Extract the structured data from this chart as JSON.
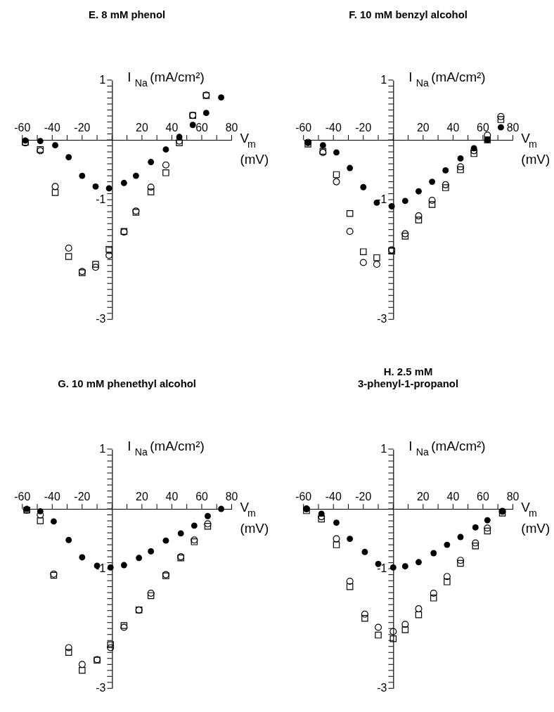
{
  "chart_data": [
    {
      "type": "scatter",
      "title": "E. 8 mM phenol",
      "xlabel": "V$_{m}$ (mV)",
      "ylabel": "I$_{Na}$ (mA/cm²)",
      "xlim": [
        -60,
        80
      ],
      "ylim": [
        -3,
        1
      ],
      "grid": false,
      "xticks": [
        -60,
        {
          "value": -50,
          "label": null
        },
        -40,
        {
          "value": -30,
          "label": null
        },
        -20,
        {
          "value": -10,
          "label": null
        },
        {
          "value": 0,
          "label": null
        },
        {
          "value": 10,
          "label": null
        },
        20,
        {
          "value": 30,
          "label": null
        },
        40,
        {
          "value": 50,
          "label": null
        },
        60,
        {
          "value": 70,
          "label": null
        },
        80
      ],
      "yticks": [
        1,
        {
          "value": 0.9,
          "label": null
        },
        {
          "value": 0.8,
          "label": null
        },
        {
          "value": 0.7,
          "label": null
        },
        {
          "value": 0.6,
          "label": null
        },
        {
          "value": 0.5,
          "label": null
        },
        {
          "value": 0.4,
          "label": null
        },
        {
          "value": 0.3,
          "label": null
        },
        {
          "value": 0.2,
          "label": null
        },
        {
          "value": 0.1,
          "label": null
        },
        {
          "value": 0,
          "label": null
        },
        {
          "value": -0.1,
          "label": null
        },
        {
          "value": -0.2,
          "label": null
        },
        {
          "value": -0.3,
          "label": null
        },
        {
          "value": -0.4,
          "label": null
        },
        {
          "value": -0.5,
          "label": null
        },
        {
          "value": -0.6,
          "label": null
        },
        {
          "value": -0.7,
          "label": null
        },
        {
          "value": -0.8,
          "label": null
        },
        {
          "value": -0.9,
          "label": null
        },
        -1,
        {
          "value": -1.1,
          "label": null
        },
        {
          "value": -1.2,
          "label": null
        },
        {
          "value": -1.3,
          "label": null
        },
        {
          "value": -1.4,
          "label": null
        },
        {
          "value": -1.5,
          "label": null
        },
        {
          "value": -1.6,
          "label": null
        },
        {
          "value": -1.7,
          "label": null
        },
        {
          "value": -1.8,
          "label": null
        },
        {
          "value": -1.9,
          "label": null
        },
        {
          "value": -2,
          "label": null
        },
        {
          "value": -2.1,
          "label": null
        },
        {
          "value": -2.2,
          "label": null
        },
        {
          "value": -2.3,
          "label": null
        },
        {
          "value": -2.4,
          "label": null
        },
        {
          "value": -2.5,
          "label": null
        },
        {
          "value": -2.6,
          "label": null
        },
        {
          "value": -2.7,
          "label": null
        },
        {
          "value": -2.8,
          "label": null
        },
        {
          "value": -2.9,
          "label": null
        },
        -3
      ],
      "series": [
        {
          "color": "#000000",
          "marker": "circle",
          "x": [
            -58,
            -48,
            -38,
            -29,
            -20,
            -11,
            -2,
            8,
            16,
            26,
            36,
            45,
            54,
            63,
            73
          ],
          "values": [
            -0.01,
            -0.02,
            -0.09,
            -0.29,
            -0.6,
            -0.78,
            -0.81,
            -0.72,
            -0.6,
            -0.37,
            -0.16,
            0.05,
            0.25,
            0.45,
            0.71
          ]
        },
        {
          "color": "#000000",
          "marker": "circle",
          "x": [
            -58,
            -48,
            -38,
            -29,
            -20,
            -11,
            -2,
            8,
            16,
            26,
            36,
            45,
            54,
            63
          ],
          "values": [
            -0.05,
            -0.18,
            -0.78,
            -1.81,
            -2.2,
            -2.13,
            -1.93,
            -1.54,
            -1.19,
            -0.79,
            -0.42,
            -0.02,
            0.41,
            0.75
          ]
        },
        {
          "color": "#000000",
          "marker": "square",
          "x": [
            -58,
            -48,
            -38,
            -29,
            -20,
            -11,
            -2,
            8,
            16,
            26,
            36,
            45,
            54,
            63
          ],
          "values": [
            -0.04,
            -0.16,
            -0.88,
            -1.95,
            -2.22,
            -2.08,
            -1.83,
            -1.53,
            -1.21,
            -0.87,
            -0.55,
            -0.05,
            0.41,
            0.74
          ]
        }
      ]
    },
    {
      "type": "scatter",
      "title": "F. 10 mM benzyl alcohol",
      "xlabel": "V$_{m}$ (mV)",
      "ylabel": "I$_{Na}$ (mA/cm²)",
      "xlim": [
        -60,
        80
      ],
      "ylim": [
        -3,
        1
      ],
      "grid": false,
      "xticks": [
        -60,
        {
          "value": -50,
          "label": null
        },
        -40,
        {
          "value": -30,
          "label": null
        },
        -20,
        {
          "value": -10,
          "label": null
        },
        {
          "value": 0,
          "label": null
        },
        {
          "value": 10,
          "label": null
        },
        20,
        {
          "value": 30,
          "label": null
        },
        40,
        {
          "value": 50,
          "label": null
        },
        60,
        {
          "value": 70,
          "label": null
        },
        80
      ],
      "yticks": [
        1,
        {
          "value": 0.9,
          "label": null
        },
        {
          "value": 0.8,
          "label": null
        },
        {
          "value": 0.7,
          "label": null
        },
        {
          "value": 0.6,
          "label": null
        },
        {
          "value": 0.5,
          "label": null
        },
        {
          "value": 0.4,
          "label": null
        },
        {
          "value": 0.3,
          "label": null
        },
        {
          "value": 0.2,
          "label": null
        },
        {
          "value": 0.1,
          "label": null
        },
        {
          "value": 0,
          "label": null
        },
        {
          "value": -0.1,
          "label": null
        },
        {
          "value": -0.2,
          "label": null
        },
        {
          "value": -0.3,
          "label": null
        },
        {
          "value": -0.4,
          "label": null
        },
        {
          "value": -0.5,
          "label": null
        },
        {
          "value": -0.6,
          "label": null
        },
        {
          "value": -0.7,
          "label": null
        },
        {
          "value": -0.8,
          "label": null
        },
        {
          "value": -0.9,
          "label": null
        },
        -1,
        {
          "value": -1.1,
          "label": null
        },
        {
          "value": -1.2,
          "label": null
        },
        {
          "value": -1.3,
          "label": null
        },
        {
          "value": -1.4,
          "label": null
        },
        {
          "value": -1.5,
          "label": null
        },
        {
          "value": -1.6,
          "label": null
        },
        {
          "value": -1.7,
          "label": null
        },
        {
          "value": -1.8,
          "label": null
        },
        {
          "value": -1.9,
          "label": null
        },
        {
          "value": -2,
          "label": null
        },
        {
          "value": -2.1,
          "label": null
        },
        {
          "value": -2.2,
          "label": null
        },
        {
          "value": -2.3,
          "label": null
        },
        {
          "value": -2.4,
          "label": null
        },
        {
          "value": -2.5,
          "label": null
        },
        {
          "value": -2.6,
          "label": null
        },
        {
          "value": -2.7,
          "label": null
        },
        {
          "value": -2.8,
          "label": null
        },
        {
          "value": -2.9,
          "label": null
        },
        -3
      ],
      "series": [
        {
          "color": "#000000",
          "marker": "circle",
          "x": [
            -57,
            -47,
            -38,
            -29,
            -20,
            -11,
            -1,
            8,
            17,
            26,
            35,
            45,
            54,
            63,
            72
          ],
          "values": [
            -0.05,
            -0.09,
            -0.21,
            -0.47,
            -0.79,
            -1.05,
            -1.11,
            -1.02,
            -0.86,
            -0.7,
            -0.51,
            -0.31,
            -0.14,
            0.0,
            0.21
          ]
        },
        {
          "color": "#000000",
          "marker": "circle",
          "x": [
            -57,
            -47,
            -38,
            -29,
            -20,
            -11,
            -1,
            8,
            17,
            26,
            35,
            45,
            54,
            63,
            72
          ],
          "values": [
            -0.04,
            -0.21,
            -0.7,
            -1.53,
            -2.05,
            -2.08,
            -1.84,
            -1.57,
            -1.27,
            -1.01,
            -0.75,
            -0.45,
            -0.18,
            0.08,
            0.39
          ]
        },
        {
          "color": "#000000",
          "marker": "square",
          "x": [
            -57,
            -47,
            -38,
            -29,
            -20,
            -11,
            -1,
            8,
            17,
            26,
            35,
            45,
            54,
            63,
            72
          ],
          "values": [
            -0.07,
            -0.19,
            -0.58,
            -1.23,
            -1.87,
            -1.97,
            -1.86,
            -1.61,
            -1.34,
            -1.08,
            -0.8,
            -0.5,
            -0.23,
            0.0,
            0.34
          ]
        }
      ]
    },
    {
      "type": "scatter",
      "title": "G. 10 mM phenethyl alcohol",
      "xlabel": "V$_{m}$ (mV)",
      "ylabel": "I$_{Na}$ (mA/cm²)",
      "xlim": [
        -60,
        80
      ],
      "ylim": [
        -3,
        1
      ],
      "grid": false,
      "xticks": [
        -60,
        {
          "value": -50,
          "label": null
        },
        -40,
        {
          "value": -30,
          "label": null
        },
        -20,
        {
          "value": -10,
          "label": null
        },
        {
          "value": 0,
          "label": null
        },
        {
          "value": 10,
          "label": null
        },
        20,
        {
          "value": 30,
          "label": null
        },
        40,
        {
          "value": 50,
          "label": null
        },
        60,
        {
          "value": 70,
          "label": null
        },
        80
      ],
      "yticks": [
        1,
        {
          "value": 0.9,
          "label": null
        },
        {
          "value": 0.8,
          "label": null
        },
        {
          "value": 0.7,
          "label": null
        },
        {
          "value": 0.6,
          "label": null
        },
        {
          "value": 0.5,
          "label": null
        },
        {
          "value": 0.4,
          "label": null
        },
        {
          "value": 0.3,
          "label": null
        },
        {
          "value": 0.2,
          "label": null
        },
        {
          "value": 0.1,
          "label": null
        },
        {
          "value": 0,
          "label": null
        },
        {
          "value": -0.1,
          "label": null
        },
        {
          "value": -0.2,
          "label": null
        },
        {
          "value": -0.3,
          "label": null
        },
        {
          "value": -0.4,
          "label": null
        },
        {
          "value": -0.5,
          "label": null
        },
        {
          "value": -0.6,
          "label": null
        },
        {
          "value": -0.7,
          "label": null
        },
        {
          "value": -0.8,
          "label": null
        },
        {
          "value": -0.9,
          "label": null
        },
        -1,
        {
          "value": -1.1,
          "label": null
        },
        {
          "value": -1.2,
          "label": null
        },
        {
          "value": -1.3,
          "label": null
        },
        {
          "value": -1.4,
          "label": null
        },
        {
          "value": -1.5,
          "label": null
        },
        {
          "value": -1.6,
          "label": null
        },
        {
          "value": -1.7,
          "label": null
        },
        {
          "value": -1.8,
          "label": null
        },
        {
          "value": -1.9,
          "label": null
        },
        {
          "value": -2,
          "label": null
        },
        {
          "value": -2.1,
          "label": null
        },
        {
          "value": -2.2,
          "label": null
        },
        {
          "value": -2.3,
          "label": null
        },
        {
          "value": -2.4,
          "label": null
        },
        {
          "value": -2.5,
          "label": null
        },
        {
          "value": -2.6,
          "label": null
        },
        {
          "value": -2.7,
          "label": null
        },
        {
          "value": -2.8,
          "label": null
        },
        {
          "value": -2.9,
          "label": null
        },
        -3
      ],
      "series": [
        {
          "color": "#000000",
          "marker": "circle",
          "x": [
            -57,
            -48,
            -39,
            -29,
            -20,
            -10,
            -1,
            8,
            18,
            26,
            36,
            46,
            55,
            64,
            73
          ],
          "values": [
            0.0,
            -0.04,
            -0.21,
            -0.52,
            -0.81,
            -0.95,
            -0.98,
            -0.94,
            -0.82,
            -0.71,
            -0.53,
            -0.41,
            -0.28,
            -0.12,
            0.0
          ]
        },
        {
          "color": "#000000",
          "marker": "circle",
          "x": [
            -57,
            -48,
            -39,
            -29,
            -20,
            -10,
            -1,
            8,
            18,
            26,
            36,
            46,
            55,
            64
          ],
          "values": [
            -0.02,
            -0.1,
            -1.09,
            -2.32,
            -2.6,
            -2.52,
            -2.32,
            -1.98,
            -1.69,
            -1.41,
            -1.1,
            -0.8,
            -0.52,
            -0.25
          ]
        },
        {
          "color": "#000000",
          "marker": "square",
          "x": [
            -57,
            -48,
            -39,
            -29,
            -20,
            -10,
            -1,
            8,
            18,
            26,
            36,
            46,
            55,
            64
          ],
          "values": [
            -0.02,
            -0.2,
            -1.11,
            -2.4,
            -2.7,
            -2.53,
            -2.27,
            -1.95,
            -1.69,
            -1.45,
            -1.12,
            -0.82,
            -0.55,
            -0.29
          ]
        }
      ]
    },
    {
      "type": "scatter",
      "title": "H. 2.5 mM 3-phenyl-1-propanol",
      "xlabel": "V$_{m}$ (mV)",
      "ylabel": "I$_{Na}$ (mA/cm²)",
      "xlim": [
        -60,
        80
      ],
      "ylim": [
        -3,
        1
      ],
      "grid": false,
      "xticks": [
        -60,
        {
          "value": -50,
          "label": null
        },
        -40,
        {
          "value": -30,
          "label": null
        },
        -20,
        {
          "value": -10,
          "label": null
        },
        {
          "value": 0,
          "label": null
        },
        {
          "value": 10,
          "label": null
        },
        20,
        {
          "value": 30,
          "label": null
        },
        40,
        {
          "value": 50,
          "label": null
        },
        60,
        {
          "value": 70,
          "label": null
        },
        80
      ],
      "yticks": [
        1,
        {
          "value": 0.9,
          "label": null
        },
        {
          "value": 0.8,
          "label": null
        },
        {
          "value": 0.7,
          "label": null
        },
        {
          "value": 0.6,
          "label": null
        },
        {
          "value": 0.5,
          "label": null
        },
        {
          "value": 0.4,
          "label": null
        },
        {
          "value": 0.3,
          "label": null
        },
        {
          "value": 0.2,
          "label": null
        },
        {
          "value": 0.1,
          "label": null
        },
        {
          "value": 0,
          "label": null
        },
        {
          "value": -0.1,
          "label": null
        },
        {
          "value": -0.2,
          "label": null
        },
        {
          "value": -0.3,
          "label": null
        },
        {
          "value": -0.4,
          "label": null
        },
        {
          "value": -0.5,
          "label": null
        },
        {
          "value": -0.6,
          "label": null
        },
        {
          "value": -0.7,
          "label": null
        },
        {
          "value": -0.8,
          "label": null
        },
        {
          "value": -0.9,
          "label": null
        },
        -1,
        {
          "value": -1.1,
          "label": null
        },
        {
          "value": -1.2,
          "label": null
        },
        {
          "value": -1.3,
          "label": null
        },
        {
          "value": -1.4,
          "label": null
        },
        {
          "value": -1.5,
          "label": null
        },
        {
          "value": -1.6,
          "label": null
        },
        {
          "value": -1.7,
          "label": null
        },
        {
          "value": -1.8,
          "label": null
        },
        {
          "value": -1.9,
          "label": null
        },
        {
          "value": -2,
          "label": null
        },
        {
          "value": -2.1,
          "label": null
        },
        {
          "value": -2.2,
          "label": null
        },
        {
          "value": -2.3,
          "label": null
        },
        {
          "value": -2.4,
          "label": null
        },
        {
          "value": -2.5,
          "label": null
        },
        {
          "value": -2.6,
          "label": null
        },
        {
          "value": -2.7,
          "label": null
        },
        {
          "value": -2.8,
          "label": null
        },
        {
          "value": -2.9,
          "label": null
        },
        -3
      ],
      "series": [
        {
          "color": "#000000",
          "marker": "circle",
          "x": [
            -58,
            -48,
            -38,
            -29,
            -19,
            -10,
            0,
            8,
            17,
            27,
            36,
            45,
            55,
            63,
            73
          ],
          "values": [
            0.0,
            -0.08,
            -0.23,
            -0.5,
            -0.72,
            -0.92,
            -0.98,
            -0.96,
            -0.89,
            -0.74,
            -0.6,
            -0.47,
            -0.31,
            -0.19,
            -0.04
          ]
        },
        {
          "color": "#000000",
          "marker": "circle",
          "x": [
            -58,
            -48,
            -38,
            -29,
            -19,
            -10,
            0,
            8,
            17,
            27,
            36,
            45,
            55,
            63,
            73
          ],
          "values": [
            0.0,
            -0.13,
            -0.5,
            -1.21,
            -1.76,
            -1.98,
            -2.05,
            -1.93,
            -1.67,
            -1.41,
            -1.13,
            -0.86,
            -0.57,
            -0.32,
            -0.04
          ]
        },
        {
          "color": "#000000",
          "marker": "square",
          "x": [
            -58,
            -48,
            -38,
            -29,
            -19,
            -10,
            0,
            8,
            17,
            27,
            36,
            45,
            55,
            63,
            73
          ],
          "values": [
            -0.03,
            -0.17,
            -0.6,
            -1.3,
            -1.83,
            -2.11,
            -2.17,
            -2.02,
            -1.77,
            -1.49,
            -1.22,
            -0.91,
            -0.62,
            -0.37,
            -0.07
          ]
        }
      ]
    }
  ]
}
